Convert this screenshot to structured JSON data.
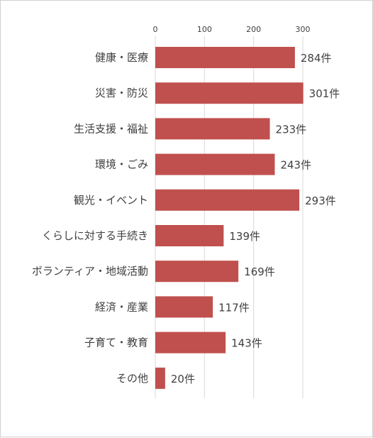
{
  "chart_data": {
    "type": "bar",
    "orientation": "horizontal",
    "categories": [
      "健康・医療",
      "災害・防災",
      "生活支援・福祉",
      "環境・ごみ",
      "観光・イベント",
      "くらしに対する手続き",
      "ボランティア・地域活動",
      "経済・産業",
      "子育て・教育",
      "その他"
    ],
    "values": [
      284,
      301,
      233,
      243,
      293,
      139,
      169,
      117,
      143,
      20
    ],
    "data_labels": [
      "284件",
      "301件",
      "233件",
      "243件",
      "293件",
      "139件",
      "169件",
      "117件",
      "143件",
      "20件"
    ],
    "x_ticks": [
      0,
      100,
      200,
      300
    ],
    "xlim": [
      0,
      300
    ],
    "axis_position": "top",
    "grid": true,
    "legend": "none",
    "colors": {
      "bar": "#c0504d",
      "grid": "#d9d9d9",
      "text": "#404040"
    }
  }
}
